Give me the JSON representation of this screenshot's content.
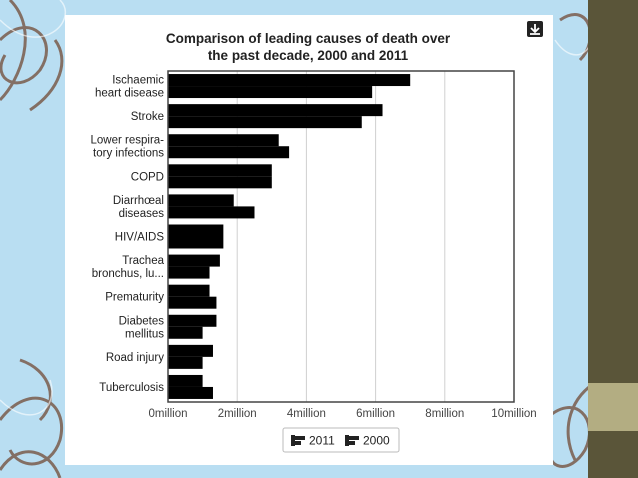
{
  "chart_data": {
    "type": "bar",
    "orientation": "horizontal",
    "title": "Comparison of leading causes of death over the past decade, 2000 and 2011",
    "title_lines": [
      "Comparison of leading causes of death over",
      "the past decade, 2000 and 2011"
    ],
    "categories": [
      [
        "Ischaemic",
        "heart disease"
      ],
      [
        "Stroke"
      ],
      [
        "Lower respira-",
        "tory infections"
      ],
      [
        "COPD"
      ],
      [
        "Diarrhœal",
        "diseases"
      ],
      [
        "HIV/AIDS"
      ],
      [
        "Trachea",
        "bronchus, lu..."
      ],
      [
        "Prematurity"
      ],
      [
        "Diabetes",
        "mellitus"
      ],
      [
        "Road injury"
      ],
      [
        "Tuberculosis"
      ]
    ],
    "series": [
      {
        "name": "2011",
        "values": [
          7.0,
          6.2,
          3.2,
          3.0,
          1.9,
          1.6,
          1.5,
          1.2,
          1.4,
          1.3,
          1.0
        ]
      },
      {
        "name": "2000",
        "values": [
          5.9,
          5.6,
          3.5,
          3.0,
          2.5,
          1.6,
          1.2,
          1.4,
          1.0,
          1.0,
          1.3
        ]
      }
    ],
    "xlim": [
      0,
      10
    ],
    "x_ticks": [
      0,
      2,
      4,
      6,
      8,
      10
    ],
    "x_tick_labels": [
      "0million",
      "2million",
      "4million",
      "6million",
      "8million",
      "10million"
    ],
    "xlabel": "",
    "ylabel": "",
    "grid": true,
    "legend_position": "bottom-center",
    "colors": {
      "bar": "#000000",
      "grid": "#d0d0d0",
      "axis": "#444444"
    }
  },
  "download_icon": "download-icon"
}
